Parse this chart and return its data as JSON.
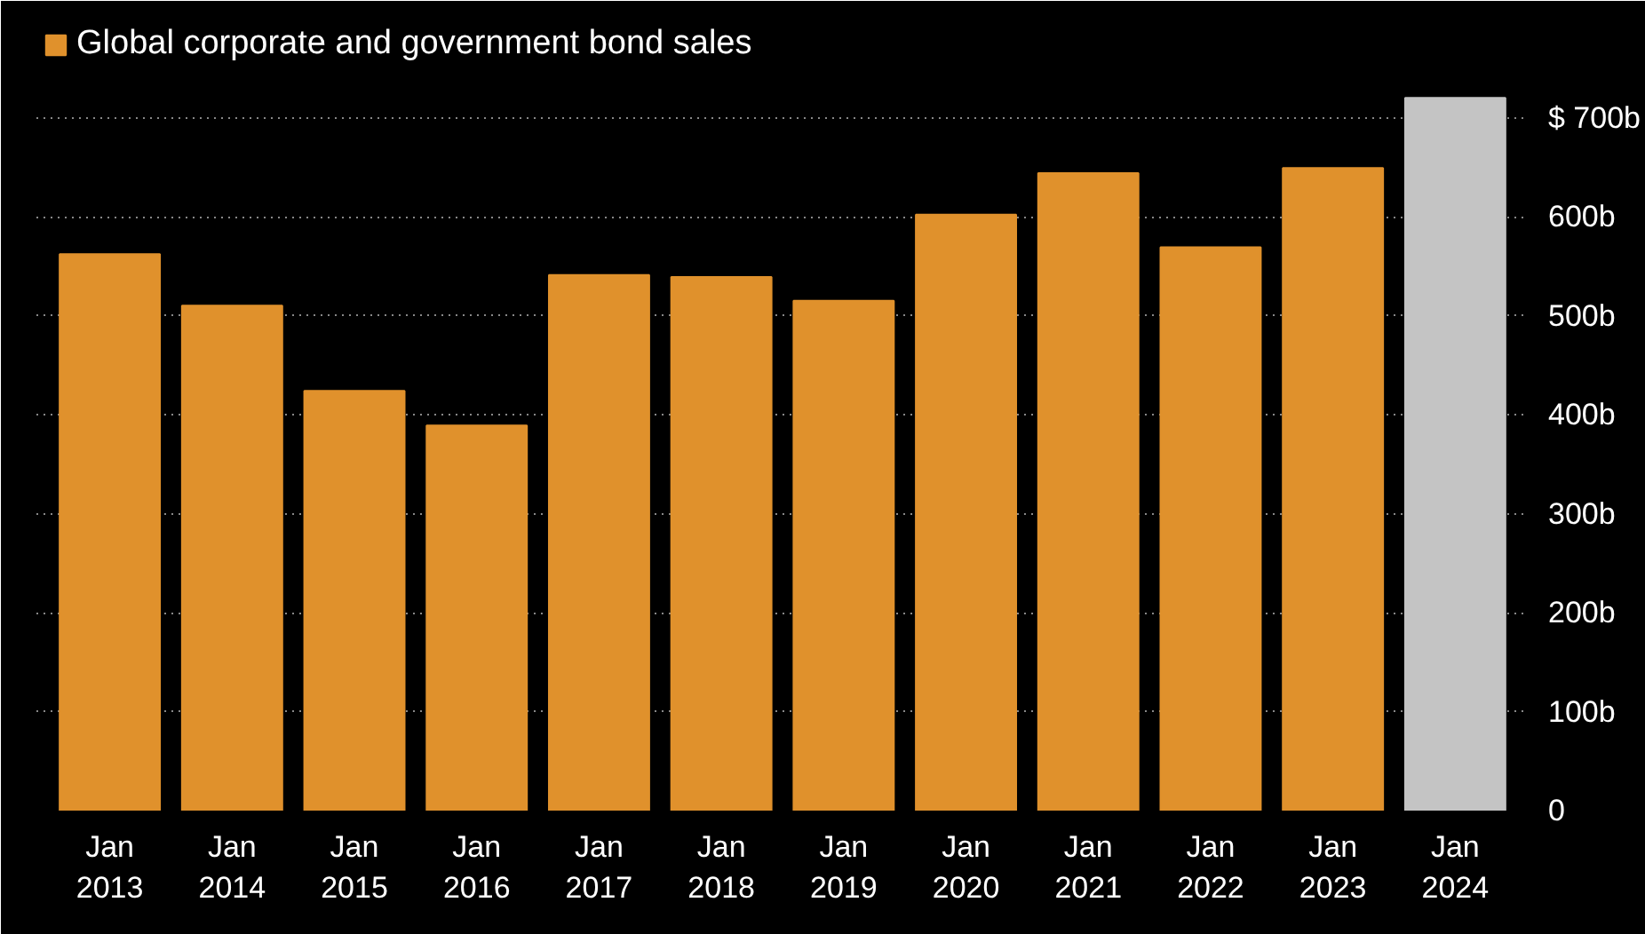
{
  "chart_data": {
    "type": "bar",
    "categories": [
      "Jan\n2013",
      "Jan\n2014",
      "Jan\n2015",
      "Jan\n2016",
      "Jan\n2017",
      "Jan\n2018",
      "Jan\n2019",
      "Jan\n2020",
      "Jan\n2021",
      "Jan\n2022",
      "Jan\n2023",
      "Jan\n2024"
    ],
    "series": [
      {
        "name": "Global corporate and government bond sales",
        "colors": [
          "#e0912c",
          "#e0912c",
          "#e0912c",
          "#e0912c",
          "#e0912c",
          "#e0912c",
          "#e0912c",
          "#e0912c",
          "#e0912c",
          "#e0912c",
          "#e0912c",
          "#c4c4c4"
        ],
        "values": [
          562,
          510,
          424,
          389,
          541,
          539,
          515,
          602,
          644,
          569,
          649,
          720
        ]
      }
    ],
    "ylim": [
      0,
      800
    ],
    "yticks": [
      0,
      {
        "value": 100,
        "label": "100b"
      },
      {
        "value": 200,
        "label": "200b"
      },
      {
        "value": 300,
        "label": "300b"
      },
      {
        "value": 400,
        "label": "400b"
      },
      {
        "value": 500,
        "label": "500b"
      },
      {
        "value": 600,
        "label": "600b"
      },
      {
        "value": 700,
        "label": "$ 700b"
      }
    ],
    "grid": "y",
    "legend": "top left"
  }
}
